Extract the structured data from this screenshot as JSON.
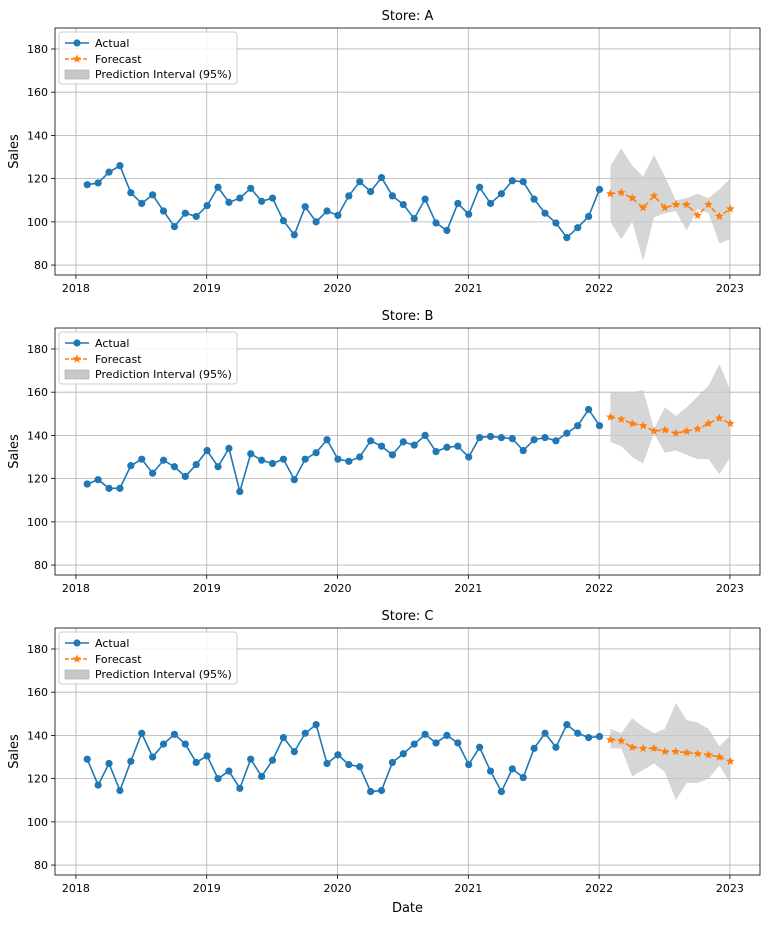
{
  "chart_data": [
    {
      "type": "line",
      "title": "Store: A",
      "ylabel": "Sales",
      "xlabel": "",
      "ylim": [
        75.4,
        189.7
      ],
      "xlim": [
        "2017-11",
        "2023-03"
      ],
      "yticks": [
        80,
        100,
        120,
        140,
        160,
        180
      ],
      "xticks": [
        "2018",
        "2019",
        "2020",
        "2021",
        "2022",
        "2023"
      ],
      "grid": true,
      "legend": {
        "placement": "top-left",
        "entries": [
          "Actual",
          "Forecast",
          "Prediction Interval (95%)"
        ]
      },
      "actual": [
        117.2,
        118,
        123,
        126,
        113.5,
        108.5,
        112.5,
        105,
        97.8,
        104,
        102.5,
        107.5,
        116,
        109,
        111,
        115.5,
        109.5,
        111,
        100.5,
        94,
        107,
        100,
        105,
        103,
        112,
        118.6,
        114,
        120.5,
        112,
        108,
        101.5,
        110.5,
        99.5,
        96,
        108.5,
        103.5,
        116,
        108.5,
        113,
        119,
        118.6,
        110.5,
        104,
        99.5,
        92.7,
        97.3,
        102.5,
        115
      ],
      "forecast": [
        113,
        113.5,
        111,
        106.5,
        112,
        106.5,
        108,
        108,
        103,
        108,
        102.5,
        106
      ],
      "upper": [
        126,
        134,
        126,
        121,
        131,
        121,
        110,
        111,
        113,
        111,
        115,
        120
      ],
      "lower": [
        100,
        92,
        100,
        82,
        102,
        104,
        105,
        96,
        106,
        104,
        90,
        92
      ]
    },
    {
      "type": "line",
      "title": "Store: B",
      "ylabel": "Sales",
      "xlabel": "",
      "ylim": [
        75.4,
        189.7
      ],
      "xlim": [
        "2017-11",
        "2023-03"
      ],
      "yticks": [
        80,
        100,
        120,
        140,
        160,
        180
      ],
      "xticks": [
        "2018",
        "2019",
        "2020",
        "2021",
        "2022",
        "2023"
      ],
      "grid": true,
      "legend": {
        "placement": "top-left",
        "entries": [
          "Actual",
          "Forecast",
          "Prediction Interval (95%)"
        ]
      },
      "actual": [
        117.5,
        119.5,
        115.5,
        115.5,
        126,
        129,
        122.5,
        128.5,
        125.5,
        121,
        126.5,
        133,
        125.5,
        134,
        114,
        131.5,
        128.5,
        127,
        129,
        119.5,
        129,
        132,
        138,
        129,
        128,
        130,
        137.5,
        135,
        131,
        137,
        135.5,
        140,
        132.5,
        134.5,
        135,
        130,
        139,
        139.5,
        139,
        138.5,
        133,
        138,
        139,
        137.5,
        141,
        144.5,
        152,
        144.5
      ],
      "forecast": [
        148.5,
        147.5,
        145.5,
        144.5,
        142,
        142.5,
        141,
        142,
        143,
        145.5,
        148,
        145.5
      ],
      "upper": [
        160,
        160,
        160,
        161,
        143,
        153,
        149,
        153,
        158,
        163,
        173,
        161
      ],
      "lower": [
        137,
        135,
        130,
        127,
        141,
        132,
        133,
        131,
        129,
        129,
        122,
        130
      ]
    },
    {
      "type": "line",
      "title": "Store: C",
      "ylabel": "Sales",
      "xlabel": "Date",
      "ylim": [
        75.4,
        189.7
      ],
      "xlim": [
        "2017-11",
        "2023-03"
      ],
      "yticks": [
        80,
        100,
        120,
        140,
        160,
        180
      ],
      "xticks": [
        "2018",
        "2019",
        "2020",
        "2021",
        "2022",
        "2023"
      ],
      "grid": true,
      "legend": {
        "placement": "top-left",
        "entries": [
          "Actual",
          "Forecast",
          "Prediction Interval (95%)"
        ]
      },
      "actual": [
        129,
        117,
        127,
        114.5,
        128,
        141,
        130,
        136,
        140.5,
        136,
        127.5,
        130.5,
        120,
        123.5,
        115.5,
        129,
        121,
        128.5,
        139,
        132.5,
        141,
        145,
        127,
        131,
        126.5,
        125.5,
        114,
        114.5,
        127.5,
        131.5,
        136,
        140.5,
        136.5,
        140,
        136.5,
        126.5,
        134.5,
        123.5,
        114,
        124.5,
        120.5,
        134,
        141,
        134.5,
        145,
        141,
        139,
        139.5
      ],
      "forecast": [
        138,
        137.5,
        134.5,
        134,
        134,
        132.5,
        132.5,
        132,
        131.5,
        131,
        130,
        128
      ],
      "upper": [
        143,
        141,
        148,
        144,
        141,
        143,
        155,
        147,
        146,
        143,
        135,
        140
      ],
      "lower": [
        134,
        134,
        121,
        124,
        127,
        123,
        110,
        118,
        118,
        120,
        126,
        118
      ]
    }
  ],
  "dates": {
    "actual_range": [
      "2018-01",
      "2021-12"
    ],
    "forecast_range": [
      "2022-01",
      "2022-12"
    ],
    "frequency": "monthly (month end)"
  },
  "colors": {
    "actual": "#1f77b4",
    "forecast": "#ff7f0e",
    "interval": "#c8c8c8",
    "grid": "#b0b0b0"
  }
}
